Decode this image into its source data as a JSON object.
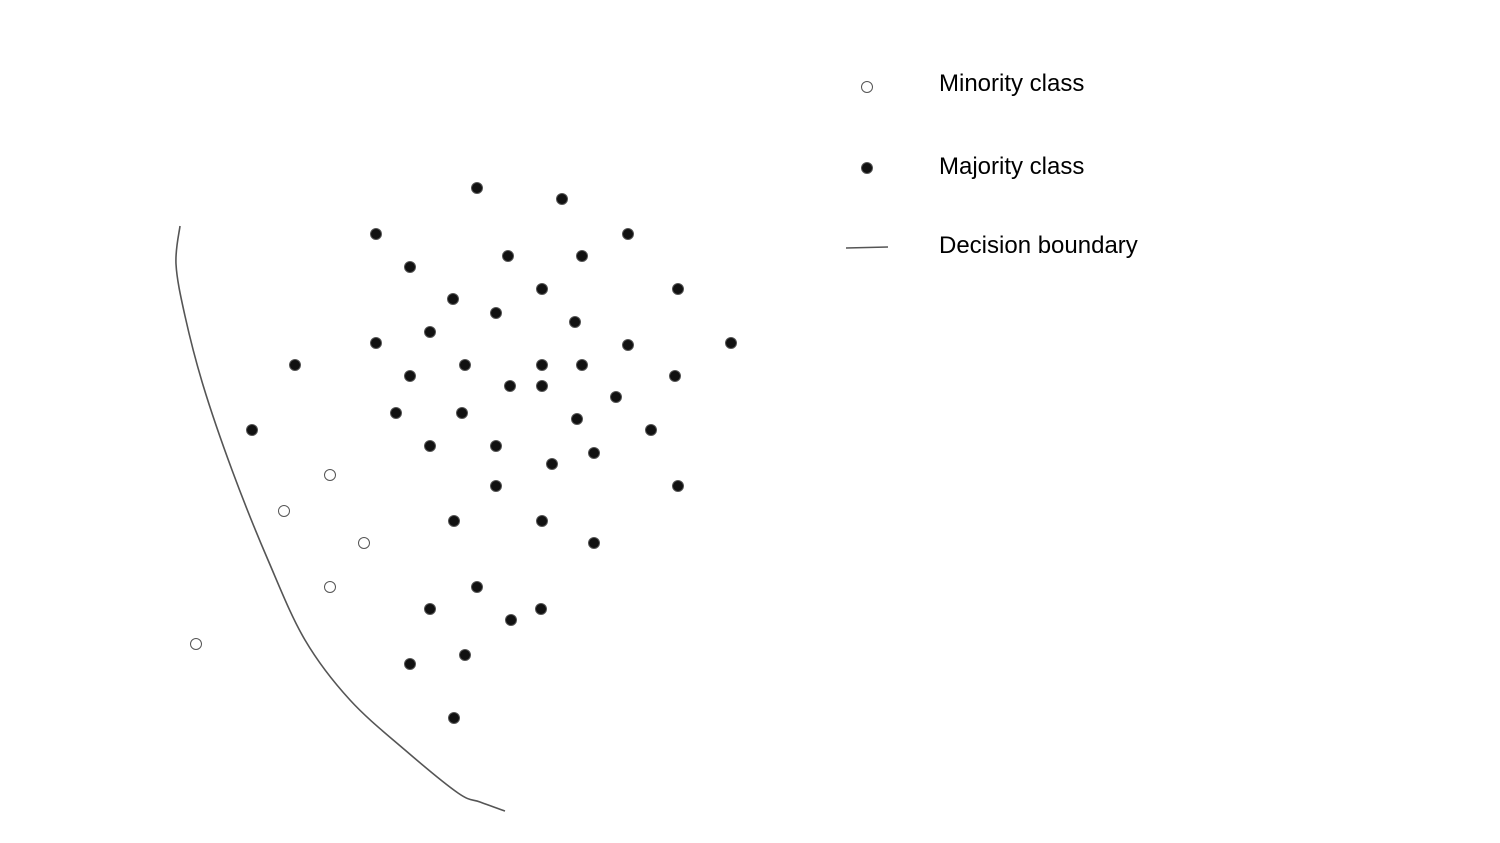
{
  "legend": {
    "minority_label": "Minority class",
    "majority_label": "Majority class",
    "boundary_label": "Decision boundary"
  },
  "colors": {
    "majority_fill": "#111111",
    "minority_fill": "#ffffff",
    "outline": "#555555",
    "boundary": "#555555",
    "text": "#000000"
  },
  "chart_data": {
    "type": "scatter",
    "series": [
      {
        "key": "minority",
        "points": [
          [
            330,
            475
          ],
          [
            284,
            511
          ],
          [
            364,
            543
          ],
          [
            330,
            587
          ],
          [
            196,
            644
          ]
        ]
      },
      {
        "key": "majority",
        "points": [
          [
            477,
            188
          ],
          [
            562,
            199
          ],
          [
            376,
            234
          ],
          [
            628,
            234
          ],
          [
            508,
            256
          ],
          [
            582,
            256
          ],
          [
            410,
            267
          ],
          [
            542,
            289
          ],
          [
            678,
            289
          ],
          [
            453,
            299
          ],
          [
            496,
            313
          ],
          [
            575,
            322
          ],
          [
            430,
            332
          ],
          [
            376,
            343
          ],
          [
            628,
            345
          ],
          [
            731,
            343
          ],
          [
            295,
            365
          ],
          [
            465,
            365
          ],
          [
            542,
            365
          ],
          [
            582,
            365
          ],
          [
            410,
            376
          ],
          [
            675,
            376
          ],
          [
            510,
            386
          ],
          [
            542,
            386
          ],
          [
            616,
            397
          ],
          [
            396,
            413
          ],
          [
            462,
            413
          ],
          [
            577,
            419
          ],
          [
            252,
            430
          ],
          [
            651,
            430
          ],
          [
            430,
            446
          ],
          [
            496,
            446
          ],
          [
            594,
            453
          ],
          [
            552,
            464
          ],
          [
            496,
            486
          ],
          [
            678,
            486
          ],
          [
            454,
            521
          ],
          [
            542,
            521
          ],
          [
            594,
            543
          ],
          [
            477,
            587
          ],
          [
            430,
            609
          ],
          [
            541,
            609
          ],
          [
            511,
            620
          ],
          [
            465,
            655
          ],
          [
            410,
            664
          ],
          [
            454,
            718
          ]
        ]
      }
    ],
    "boundary": [
      [
        180,
        226
      ],
      [
        176,
        264
      ],
      [
        185,
        316
      ],
      [
        203,
        385
      ],
      [
        232,
        470
      ],
      [
        268,
        560
      ],
      [
        305,
        640
      ],
      [
        350,
        700
      ],
      [
        405,
        750
      ],
      [
        458,
        793
      ],
      [
        480,
        802
      ],
      [
        505,
        811
      ]
    ]
  }
}
